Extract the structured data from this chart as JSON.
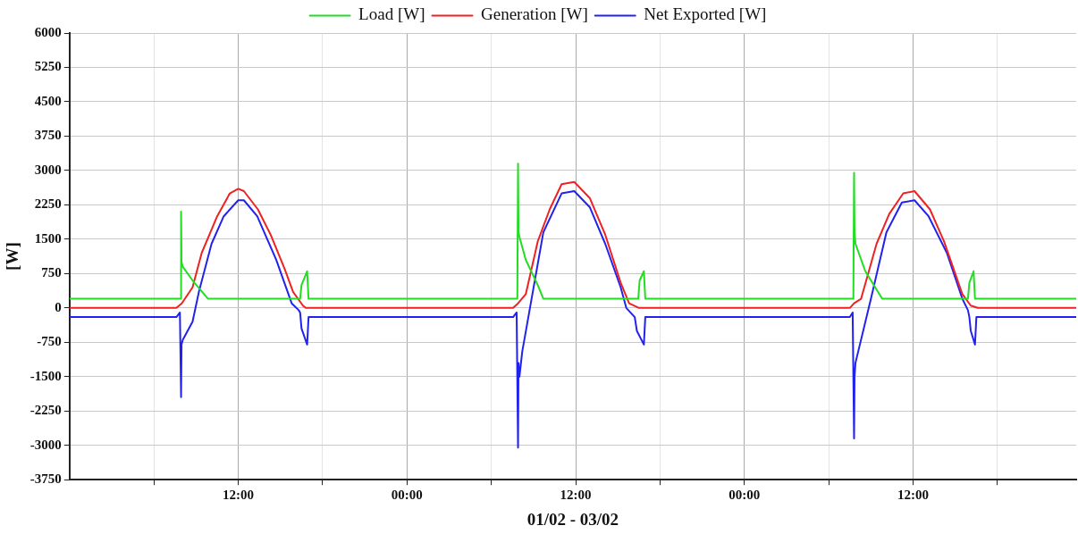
{
  "chart_data": {
    "type": "line",
    "xlabel": "01/02 - 03/02",
    "ylabel": "[W]",
    "legend": "top",
    "grid": true,
    "marker": "none",
    "line_style": "solid",
    "xlim": [
      "--02-01T00:00",
      "--02-03T23:36"
    ],
    "xticks": [
      {
        "value": "--02-01T06:00",
        "label": null
      },
      {
        "value": "--02-01T12:00",
        "label": "12:00"
      },
      {
        "value": "--02-01T18:00",
        "label": null
      },
      {
        "value": "--02-02T00:00",
        "label": "00:00"
      },
      {
        "value": "--02-02T06:00",
        "label": null
      },
      {
        "value": "--02-02T12:00",
        "label": "12:00"
      },
      {
        "value": "--02-02T18:00",
        "label": null
      },
      {
        "value": "--02-03T00:00",
        "label": "00:00"
      },
      {
        "value": "--02-03T06:00",
        "label": null
      },
      {
        "value": "--02-03T12:00",
        "label": "12:00"
      },
      {
        "value": "--02-03T18:00",
        "label": null
      }
    ],
    "ylim": [
      -3750,
      6000
    ],
    "yticks": [
      -3750,
      -3000,
      -2250,
      -1500,
      -750,
      0,
      750,
      1500,
      2250,
      3000,
      3750,
      4500,
      5250,
      6000
    ],
    "series": [
      {
        "name": "Load [W]",
        "color": "#22dd22",
        "x": [
          "--02-01T00:00",
          "--02-01T07:54",
          "--02-01T07:56",
          "--02-01T07:58",
          "--02-01T08:03",
          "--02-01T08:45",
          "--02-01T09:51",
          "--02-01T16:24",
          "--02-01T16:30",
          "--02-01T16:54",
          "--02-01T17:00",
          "--02-02T07:51",
          "--02-02T07:54",
          "--02-02T07:56",
          "--02-02T08:00",
          "--02-02T08:27",
          "--02-02T09:18",
          "--02-02T09:42",
          "--02-02T16:27",
          "--02-02T16:33",
          "--02-02T16:51",
          "--02-02T16:57",
          "--02-03T07:45",
          "--02-03T07:48",
          "--02-03T07:50",
          "--02-03T07:54",
          "--02-03T08:36",
          "--02-03T09:48",
          "--02-03T15:54",
          "--02-03T16:00",
          "--02-03T16:18",
          "--02-03T16:24",
          "--02-03T23:36"
        ],
        "values": [
          200,
          200,
          2100,
          1000,
          900,
          600,
          200,
          200,
          500,
          800,
          200,
          200,
          3150,
          1650,
          1550,
          1050,
          500,
          200,
          200,
          600,
          800,
          200,
          200,
          2950,
          1650,
          1400,
          800,
          200,
          200,
          550,
          800,
          200,
          200
        ]
      },
      {
        "name": "Generation [W]",
        "color": "#ee2222",
        "x": [
          "--02-01T00:00",
          "--02-01T07:36",
          "--02-01T07:59",
          "--02-01T08:45",
          "--02-01T09:24",
          "--02-01T10:30",
          "--02-01T11:24",
          "--02-01T12:00",
          "--02-01T12:24",
          "--02-01T13:24",
          "--02-01T14:18",
          "--02-01T15:18",
          "--02-01T15:54",
          "--02-01T16:36",
          "--02-01T16:48",
          "--02-02T07:33",
          "--02-02T07:54",
          "--02-02T08:27",
          "--02-02T09:18",
          "--02-02T10:09",
          "--02-02T11:00",
          "--02-02T11:54",
          "--02-02T13:00",
          "--02-02T14:06",
          "--02-02T15:12",
          "--02-02T15:48",
          "--02-02T16:30",
          "--02-03T07:30",
          "--02-03T07:48",
          "--02-03T08:18",
          "--02-03T09:24",
          "--02-03T10:18",
          "--02-03T11:18",
          "--02-03T12:06",
          "--02-03T13:12",
          "--02-03T14:12",
          "--02-03T15:30",
          "--02-03T16:06",
          "--02-03T16:36",
          "--02-03T23:36"
        ],
        "values": [
          0,
          0,
          100,
          450,
          1200,
          2000,
          2500,
          2600,
          2550,
          2150,
          1600,
          850,
          350,
          50,
          0,
          0,
          100,
          300,
          1450,
          2150,
          2700,
          2750,
          2400,
          1600,
          550,
          100,
          0,
          0,
          100,
          200,
          1400,
          2050,
          2500,
          2550,
          2150,
          1450,
          300,
          50,
          0,
          0
        ]
      },
      {
        "name": "Net Exported [W]",
        "color": "#2222ee",
        "x": [
          "--02-01T00:00",
          "--02-01T07:36",
          "--02-01T07:51",
          "--02-01T07:56",
          "--02-01T07:58",
          "--02-01T08:03",
          "--02-01T08:45",
          "--02-01T09:12",
          "--02-01T10:06",
          "--02-01T10:58",
          "--02-01T12:00",
          "--02-01T12:24",
          "--02-01T13:21",
          "--02-01T14:42",
          "--02-01T15:48",
          "--02-01T16:18",
          "--02-01T16:24",
          "--02-01T16:30",
          "--02-01T16:54",
          "--02-01T17:00",
          "--02-02T07:33",
          "--02-02T07:48",
          "--02-02T07:54",
          "--02-02T07:56",
          "--02-02T08:00",
          "--02-02T08:12",
          "--02-02T09:42",
          "--02-02T11:00",
          "--02-02T11:54",
          "--02-02T13:00",
          "--02-02T14:06",
          "--02-02T15:12",
          "--02-02T15:36",
          "--02-02T16:12",
          "--02-02T16:21",
          "--02-02T16:51",
          "--02-02T16:57",
          "--02-03T07:30",
          "--02-03T07:42",
          "--02-03T07:48",
          "--02-03T07:50",
          "--02-03T07:54",
          "--02-03T09:00",
          "--02-03T10:06",
          "--02-03T11:12",
          "--02-03T12:06",
          "--02-03T13:06",
          "--02-03T14:24",
          "--02-03T15:30",
          "--02-03T15:54",
          "--02-03T16:00",
          "--02-03T16:06",
          "--02-03T16:24",
          "--02-03T16:30",
          "--02-03T23:36"
        ],
        "values": [
          -200,
          -200,
          -100,
          -1950,
          -800,
          -700,
          -300,
          350,
          1400,
          2000,
          2350,
          2350,
          2000,
          1050,
          100,
          -50,
          -100,
          -450,
          -800,
          -200,
          -200,
          -100,
          -3050,
          -1200,
          -1500,
          -950,
          1650,
          2500,
          2550,
          2200,
          1400,
          450,
          0,
          -200,
          -500,
          -800,
          -200,
          -200,
          -100,
          -2850,
          -1500,
          -1200,
          200,
          1650,
          2300,
          2350,
          2000,
          1200,
          200,
          -50,
          -200,
          -500,
          -800,
          -200,
          -200
        ]
      }
    ]
  }
}
